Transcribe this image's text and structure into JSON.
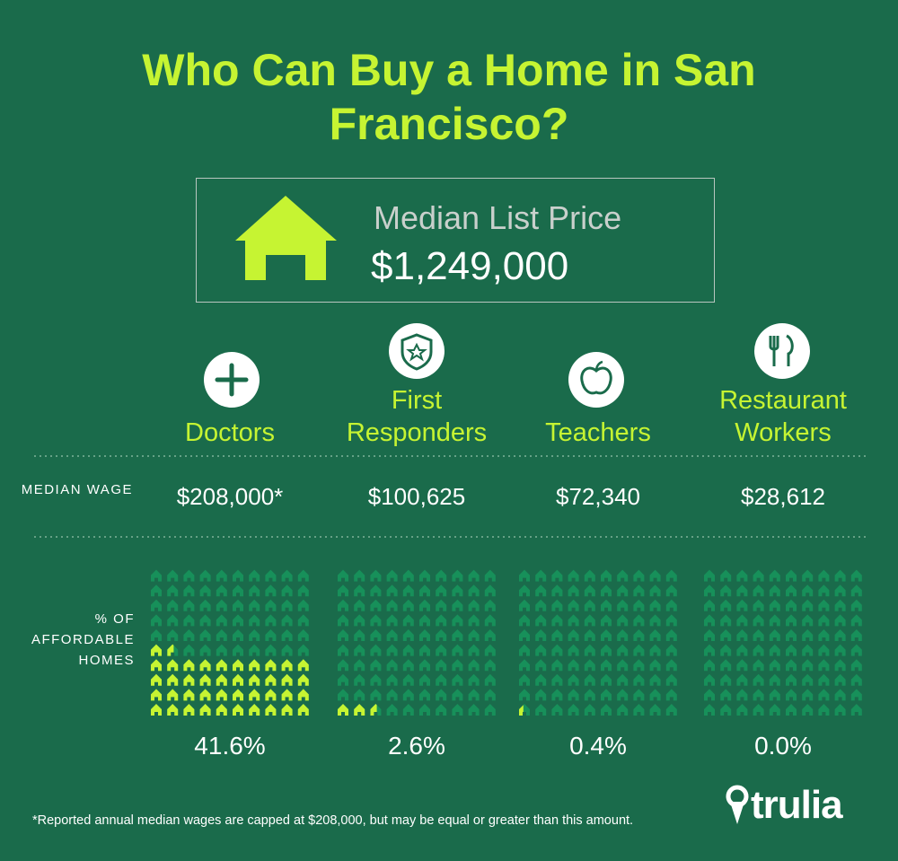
{
  "title": "Who Can Buy a Home in San Francisco?",
  "price_box": {
    "label": "Median List Price",
    "value": "$1,249,000"
  },
  "wage_label": "MEDIAN WAGE",
  "wages": [
    "$208,000*",
    "$100,625",
    "$72,340",
    "$28,612"
  ],
  "footnote": "*Reported annual median wages are capped at $208,000, but may be equal or greater than this amount.",
  "logo": "trulia",
  "chart_data": {
    "type": "waffle",
    "y_label": "% OF AFFORDABLE HOMES",
    "categories": [
      "Doctors",
      "First Responders",
      "Teachers",
      "Restaurant Workers"
    ],
    "values": [
      41.6,
      2.6,
      0.4,
      0.0
    ],
    "value_labels": [
      "41.6%",
      "2.6%",
      "0.4%",
      "0.0%"
    ],
    "color": "#c6f432",
    "empty_color": "#17905a"
  }
}
